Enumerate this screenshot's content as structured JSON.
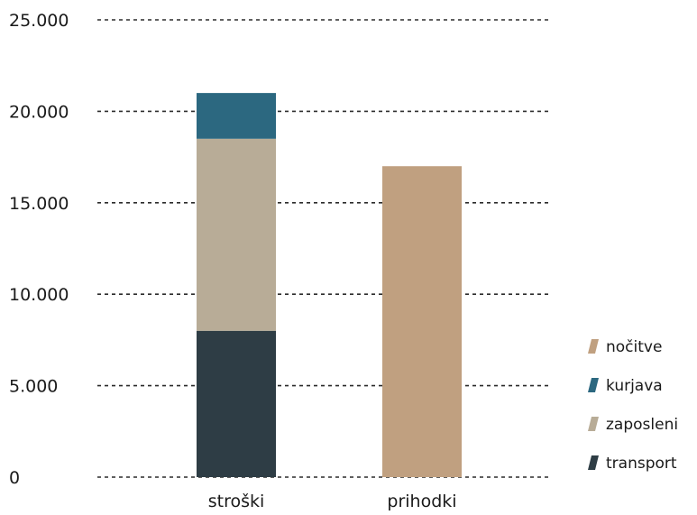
{
  "chart_data": {
    "type": "bar",
    "stacked": true,
    "categories": [
      "stroški",
      "prihodki"
    ],
    "series": [
      {
        "name": "transport",
        "color": "#2e3d45",
        "values": [
          8000,
          0
        ]
      },
      {
        "name": "zaposleni",
        "color": "#b8ac97",
        "values": [
          10500,
          0
        ]
      },
      {
        "name": "kurjava",
        "color": "#2c6880",
        "values": [
          2500,
          0
        ]
      },
      {
        "name": "nočitve",
        "color": "#c0a080",
        "values": [
          0,
          17000
        ]
      }
    ],
    "y_ticks": [
      "0",
      "5.000",
      "10.000",
      "15.000",
      "20.000",
      "25.000"
    ],
    "ylim": [
      0,
      25000
    ],
    "grid": true,
    "legend": {
      "position": "right",
      "order": [
        "nočitve",
        "kurjava",
        "zaposleni",
        "transport"
      ]
    }
  }
}
